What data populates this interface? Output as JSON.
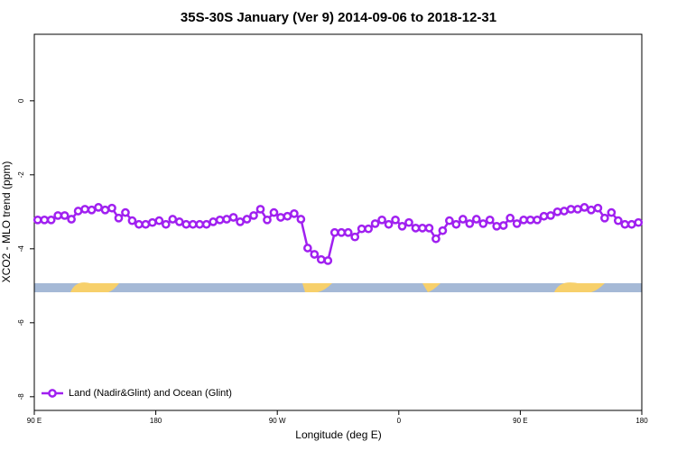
{
  "chart_data": {
    "type": "line",
    "title": "35S-30S January (Ver 9)   2014-09-06 to 2018-12-31",
    "x_label": "Longitude (deg E)",
    "y_label": "XCO2 - MLO trend (ppm)",
    "xlim": [
      90,
      540
    ],
    "ylim": [
      -8.37,
      1.8
    ],
    "xticks": [
      {
        "value": 90,
        "label": "90 E"
      },
      {
        "value": 180,
        "label": "180"
      },
      {
        "value": 270,
        "label": "90 W"
      },
      {
        "value": 360,
        "label": "0"
      },
      {
        "value": 450,
        "label": "90 E"
      },
      {
        "value": 540,
        "label": "180"
      }
    ],
    "yticks": [
      0,
      -2,
      -4,
      -6,
      -8
    ],
    "x": [
      92.5,
      97.5,
      102.5,
      107.5,
      112.5,
      117.5,
      122.5,
      127.5,
      132.5,
      137.5,
      142.5,
      147.5,
      152.5,
      157.5,
      162.5,
      167.5,
      172.5,
      177.5,
      182.5,
      187.5,
      192.5,
      197.5,
      202.5,
      207.5,
      212.5,
      217.5,
      222.5,
      227.5,
      232.5,
      237.5,
      242.5,
      247.5,
      252.5,
      257.5,
      262.5,
      267.5,
      272.5,
      277.5,
      282.5,
      287.5,
      292.5,
      297.5,
      302.5,
      307.5,
      312.5,
      317.5,
      322.5,
      327.5,
      332.5,
      337.5,
      342.5,
      347.5,
      352.5,
      357.5,
      362.5,
      367.5,
      372.5,
      377.5,
      382.5,
      387.5,
      392.5,
      397.5,
      402.5,
      407.5,
      412.5,
      417.5,
      422.5,
      427.5,
      432.5,
      437.5,
      442.5,
      447.5,
      452.5,
      457.5,
      462.5,
      467.5,
      472.5,
      477.5,
      482.5,
      487.5,
      492.5,
      497.5,
      502.5,
      507.5,
      512.5,
      517.5,
      522.5,
      527.5,
      532.5,
      537.5
    ],
    "series": [
      {
        "name": "Land (Nadir&Glint) and Ocean (Glint)",
        "color": "#a020f0",
        "values": [
          -3.22,
          -3.22,
          -3.22,
          -3.1,
          -3.1,
          -3.2,
          -2.98,
          -2.93,
          -2.95,
          -2.88,
          -2.95,
          -2.9,
          -3.17,
          -3.02,
          -3.24,
          -3.34,
          -3.34,
          -3.29,
          -3.24,
          -3.34,
          -3.2,
          -3.27,
          -3.34,
          -3.34,
          -3.34,
          -3.34,
          -3.27,
          -3.22,
          -3.2,
          -3.15,
          -3.27,
          -3.2,
          -3.1,
          -2.93,
          -3.22,
          -3.02,
          -3.15,
          -3.12,
          -3.05,
          -3.2,
          -3.98,
          -4.15,
          -4.29,
          -4.32,
          -3.56,
          -3.56,
          -3.56,
          -3.68,
          -3.46,
          -3.46,
          -3.32,
          -3.22,
          -3.34,
          -3.22,
          -3.39,
          -3.29,
          -3.44,
          -3.44,
          -3.44,
          -3.73,
          -3.51,
          -3.24,
          -3.34,
          -3.2,
          -3.32,
          -3.2,
          -3.32,
          -3.22,
          -3.39,
          -3.37,
          -3.17,
          -3.32,
          -3.22,
          -3.22,
          -3.22,
          -3.12,
          -3.1,
          -3.0,
          -2.98,
          -2.93,
          -2.93,
          -2.88,
          -2.95,
          -2.9,
          -3.17,
          -3.02,
          -3.24,
          -3.34,
          -3.34,
          -3.29
        ]
      }
    ],
    "legend": "bottom-left"
  }
}
